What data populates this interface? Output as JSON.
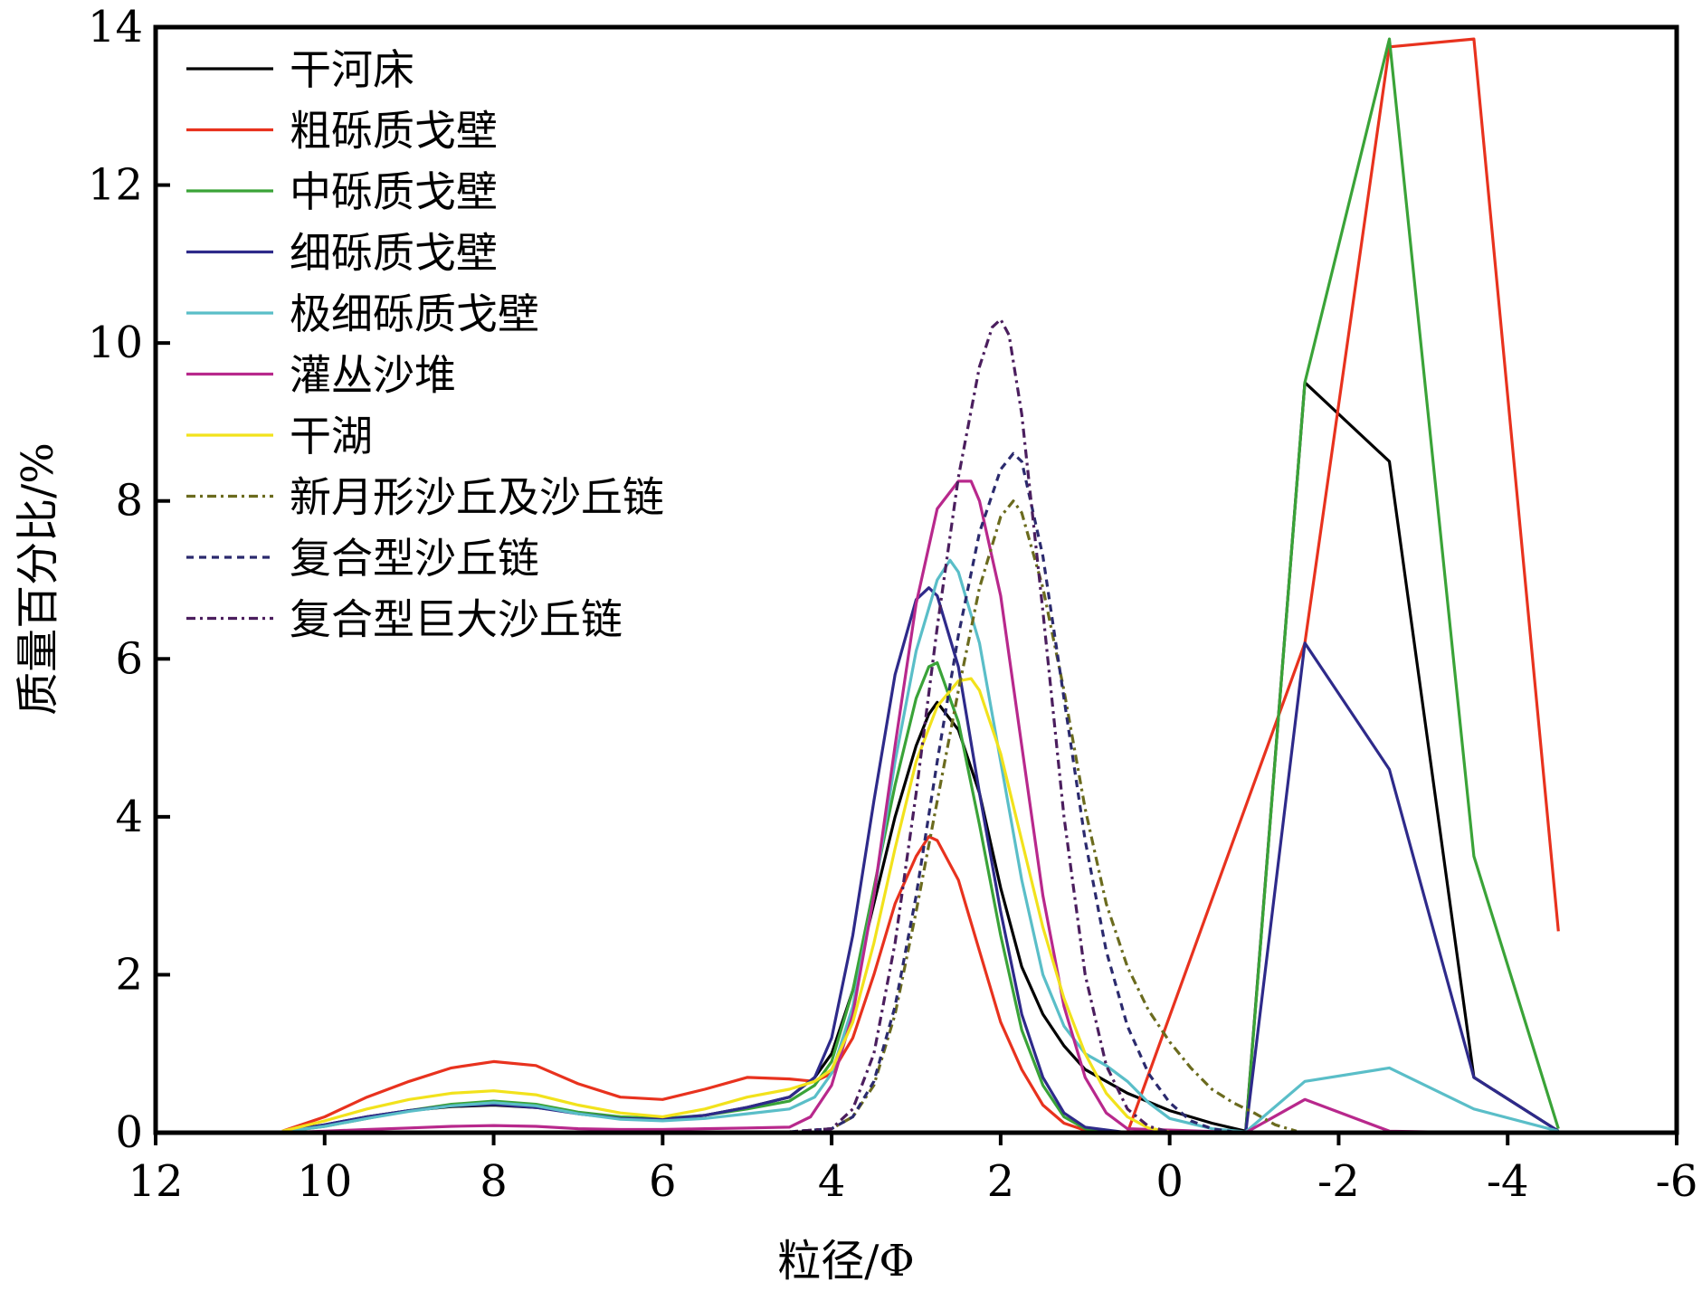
{
  "chart_data": {
    "type": "line",
    "title": "",
    "xlabel": "粒径/Φ",
    "ylabel": "质量百分比/%",
    "xlim": [
      12,
      -6
    ],
    "ylim": [
      0,
      14
    ],
    "x_reversed": true,
    "xticks": [
      12,
      10,
      8,
      6,
      4,
      2,
      0,
      -2,
      -4,
      -6
    ],
    "xtick_labels": [
      "12",
      "10",
      "8",
      "6",
      "4",
      "2",
      "0",
      "-2",
      "-4",
      "-6"
    ],
    "yticks": [
      0,
      2,
      4,
      6,
      8,
      10,
      12,
      14
    ],
    "ytick_labels": [
      "0",
      "2",
      "4",
      "6",
      "8",
      "10",
      "12",
      "14"
    ],
    "grid": false,
    "legend_position": "top-left",
    "series": [
      {
        "name": "干河床",
        "color": "#000000",
        "dash": "solid",
        "x": [
          10.5,
          10,
          9.5,
          9,
          8.5,
          8,
          7.5,
          7,
          6.5,
          6,
          5.5,
          5,
          4.5,
          4.2,
          4,
          3.75,
          3.5,
          3.25,
          3,
          2.85,
          2.75,
          2.5,
          2.25,
          2,
          1.75,
          1.5,
          1.25,
          1,
          0.5,
          0,
          -0.5,
          -0.9,
          -1.6,
          -2.6,
          -3.6,
          -4.6
        ],
        "y": [
          0.02,
          0.1,
          0.2,
          0.28,
          0.33,
          0.35,
          0.32,
          0.25,
          0.18,
          0.16,
          0.22,
          0.32,
          0.45,
          0.7,
          1.0,
          1.8,
          2.9,
          4.0,
          4.9,
          5.3,
          5.45,
          5.1,
          4.3,
          3.1,
          2.1,
          1.5,
          1.1,
          0.8,
          0.5,
          0.28,
          0.12,
          0.02,
          9.5,
          8.5,
          0.7,
          0.02
        ]
      },
      {
        "name": "粗砾质戈壁",
        "color": "#e8321e",
        "dash": "solid",
        "x": [
          10.5,
          10,
          9.5,
          9,
          8.5,
          8,
          7.5,
          7,
          6.5,
          6,
          5.5,
          5,
          4.5,
          4.2,
          4,
          3.75,
          3.5,
          3.25,
          3,
          2.85,
          2.75,
          2.5,
          2.25,
          2,
          1.75,
          1.5,
          1.25,
          1,
          0.75,
          0.5,
          -1.6,
          -2.6,
          -3.6,
          -4.6
        ],
        "y": [
          0.02,
          0.2,
          0.45,
          0.65,
          0.82,
          0.9,
          0.85,
          0.62,
          0.45,
          0.42,
          0.55,
          0.7,
          0.68,
          0.65,
          0.75,
          1.2,
          2.0,
          2.9,
          3.5,
          3.75,
          3.7,
          3.2,
          2.3,
          1.4,
          0.8,
          0.35,
          0.12,
          0.03,
          0.01,
          0.0,
          6.2,
          13.75,
          13.85,
          2.55
        ]
      },
      {
        "name": "中砾质戈壁",
        "color": "#3aa338",
        "dash": "solid",
        "x": [
          10.5,
          10,
          9.5,
          9,
          8.5,
          8,
          7.5,
          7,
          6.5,
          6,
          5.5,
          5,
          4.5,
          4.2,
          4,
          3.75,
          3.5,
          3.25,
          3,
          2.85,
          2.75,
          2.5,
          2.25,
          2,
          1.75,
          1.5,
          1.25,
          1,
          0.5,
          -0.9,
          -1.6,
          -2.6,
          -3.6,
          -4.6
        ],
        "y": [
          0.01,
          0.08,
          0.18,
          0.28,
          0.36,
          0.4,
          0.36,
          0.26,
          0.2,
          0.18,
          0.22,
          0.3,
          0.4,
          0.6,
          0.9,
          1.8,
          3.1,
          4.4,
          5.5,
          5.9,
          5.95,
          5.2,
          3.9,
          2.5,
          1.3,
          0.6,
          0.2,
          0.05,
          0.0,
          0.0,
          9.5,
          13.85,
          3.5,
          0.05
        ]
      },
      {
        "name": "细砾质戈壁",
        "color": "#2e2a8a",
        "dash": "solid",
        "x": [
          10.5,
          10,
          9.5,
          9,
          8.5,
          8,
          7.5,
          7,
          6.5,
          6,
          5.5,
          5,
          4.5,
          4.2,
          4,
          3.75,
          3.5,
          3.25,
          3,
          2.85,
          2.75,
          2.5,
          2.25,
          2,
          1.75,
          1.5,
          1.25,
          1,
          0.5,
          -0.9,
          -1.6,
          -2.6,
          -3.6,
          -4.6
        ],
        "y": [
          0.01,
          0.1,
          0.2,
          0.28,
          0.34,
          0.36,
          0.32,
          0.24,
          0.18,
          0.17,
          0.22,
          0.32,
          0.45,
          0.7,
          1.2,
          2.5,
          4.2,
          5.8,
          6.75,
          6.9,
          6.8,
          5.9,
          4.3,
          2.8,
          1.5,
          0.7,
          0.25,
          0.07,
          0.0,
          0.0,
          6.2,
          4.6,
          0.7,
          0.02
        ]
      },
      {
        "name": "极细砾质戈壁",
        "color": "#5abec8",
        "dash": "solid",
        "x": [
          10.5,
          10,
          9.5,
          9,
          8.5,
          8,
          7.5,
          7,
          6.5,
          6,
          5.5,
          5,
          4.5,
          4.2,
          4,
          3.75,
          3.5,
          3.25,
          3,
          2.75,
          2.6,
          2.5,
          2.25,
          2,
          1.75,
          1.5,
          1.25,
          1,
          0.75,
          0.5,
          0.25,
          0,
          -0.5,
          -0.9,
          -1.6,
          -2.6,
          -3.6,
          -4.6
        ],
        "y": [
          0.01,
          0.08,
          0.18,
          0.27,
          0.34,
          0.38,
          0.34,
          0.24,
          0.17,
          0.15,
          0.18,
          0.24,
          0.3,
          0.45,
          0.75,
          1.6,
          3.0,
          4.7,
          6.1,
          7.0,
          7.25,
          7.1,
          6.2,
          4.7,
          3.2,
          2.0,
          1.35,
          1.0,
          0.85,
          0.65,
          0.38,
          0.18,
          0.05,
          0.01,
          0.65,
          0.82,
          0.3,
          0.02
        ]
      },
      {
        "name": "灌丛沙堆",
        "color": "#b8288c",
        "dash": "solid",
        "x": [
          10.5,
          10,
          9.5,
          9,
          8.5,
          8,
          7.5,
          7,
          6.5,
          6,
          5.5,
          5,
          4.5,
          4.25,
          4,
          3.75,
          3.5,
          3.25,
          3,
          2.75,
          2.5,
          2.35,
          2.25,
          2,
          1.75,
          1.5,
          1.25,
          1,
          0.75,
          0.5,
          -0.9,
          -1.6,
          -2.6,
          -3.6,
          -4.6
        ],
        "y": [
          0.0,
          0.02,
          0.04,
          0.06,
          0.08,
          0.09,
          0.08,
          0.05,
          0.04,
          0.04,
          0.05,
          0.06,
          0.07,
          0.2,
          0.6,
          1.5,
          3.0,
          4.9,
          6.7,
          7.9,
          8.25,
          8.25,
          8.0,
          6.8,
          4.9,
          3.0,
          1.6,
          0.7,
          0.25,
          0.05,
          0.0,
          0.42,
          0.02,
          0.0,
          0.0
        ]
      },
      {
        "name": "干湖",
        "color": "#f2e21c",
        "dash": "solid",
        "x": [
          10.5,
          10,
          9.5,
          9,
          8.5,
          8,
          7.5,
          7,
          6.5,
          6,
          5.5,
          5,
          4.5,
          4.2,
          4,
          3.75,
          3.5,
          3.25,
          3,
          2.75,
          2.5,
          2.35,
          2.25,
          2,
          1.75,
          1.5,
          1.25,
          1,
          0.75,
          0.5,
          0.25,
          0,
          -0.9,
          -1.6
        ],
        "y": [
          0.02,
          0.15,
          0.3,
          0.42,
          0.5,
          0.53,
          0.48,
          0.35,
          0.25,
          0.2,
          0.3,
          0.45,
          0.55,
          0.65,
          0.8,
          1.4,
          2.4,
          3.6,
          4.7,
          5.4,
          5.72,
          5.75,
          5.6,
          4.8,
          3.7,
          2.6,
          1.7,
          1.0,
          0.5,
          0.2,
          0.06,
          0.01,
          0.0,
          0.0
        ]
      },
      {
        "name": "新月形沙丘及沙丘链",
        "color": "#6b6b1e",
        "dash": "10,5,3,5",
        "x": [
          10.5,
          8,
          6,
          5,
          4.5,
          4,
          3.75,
          3.5,
          3.25,
          3,
          2.75,
          2.5,
          2.25,
          2,
          1.85,
          1.75,
          1.5,
          1.25,
          1,
          0.75,
          0.5,
          0.25,
          0,
          -0.25,
          -0.5,
          -0.75,
          -1,
          -1.25,
          -1.5
        ],
        "y": [
          0.0,
          0.0,
          0.0,
          0.0,
          0.01,
          0.05,
          0.2,
          0.6,
          1.5,
          2.8,
          4.2,
          5.6,
          6.9,
          7.8,
          8.0,
          7.85,
          6.9,
          5.6,
          4.1,
          2.9,
          2.1,
          1.55,
          1.15,
          0.82,
          0.55,
          0.38,
          0.25,
          0.1,
          0.02
        ]
      },
      {
        "name": "复合型沙丘链",
        "color": "#2b2a6e",
        "dash": "8,6",
        "x": [
          10.5,
          8,
          6,
          5,
          4.5,
          4,
          3.75,
          3.5,
          3.25,
          3,
          2.75,
          2.5,
          2.25,
          2,
          1.85,
          1.75,
          1.5,
          1.25,
          1,
          0.75,
          0.5,
          0.25,
          0,
          -0.25,
          -0.5,
          -0.75
        ],
        "y": [
          0.0,
          0.0,
          0.0,
          0.0,
          0.01,
          0.05,
          0.2,
          0.65,
          1.6,
          3.0,
          4.7,
          6.3,
          7.6,
          8.4,
          8.6,
          8.5,
          7.3,
          5.5,
          3.7,
          2.3,
          1.35,
          0.75,
          0.38,
          0.15,
          0.05,
          0.01
        ]
      },
      {
        "name": "复合型巨大沙丘链",
        "color": "#4b1e5e",
        "dash": "10,5,3,5",
        "x": [
          10.5,
          8,
          6,
          5,
          4.5,
          4,
          3.75,
          3.5,
          3.25,
          3,
          2.75,
          2.5,
          2.25,
          2.1,
          2,
          1.9,
          1.75,
          1.5,
          1.25,
          1,
          0.75,
          0.5,
          0.25,
          0
        ],
        "y": [
          0.0,
          0.0,
          0.0,
          0.0,
          0.01,
          0.05,
          0.3,
          1.0,
          2.4,
          4.3,
          6.4,
          8.3,
          9.7,
          10.2,
          10.3,
          10.1,
          9.1,
          6.6,
          4.0,
          2.0,
          0.85,
          0.3,
          0.08,
          0.01
        ]
      }
    ]
  }
}
